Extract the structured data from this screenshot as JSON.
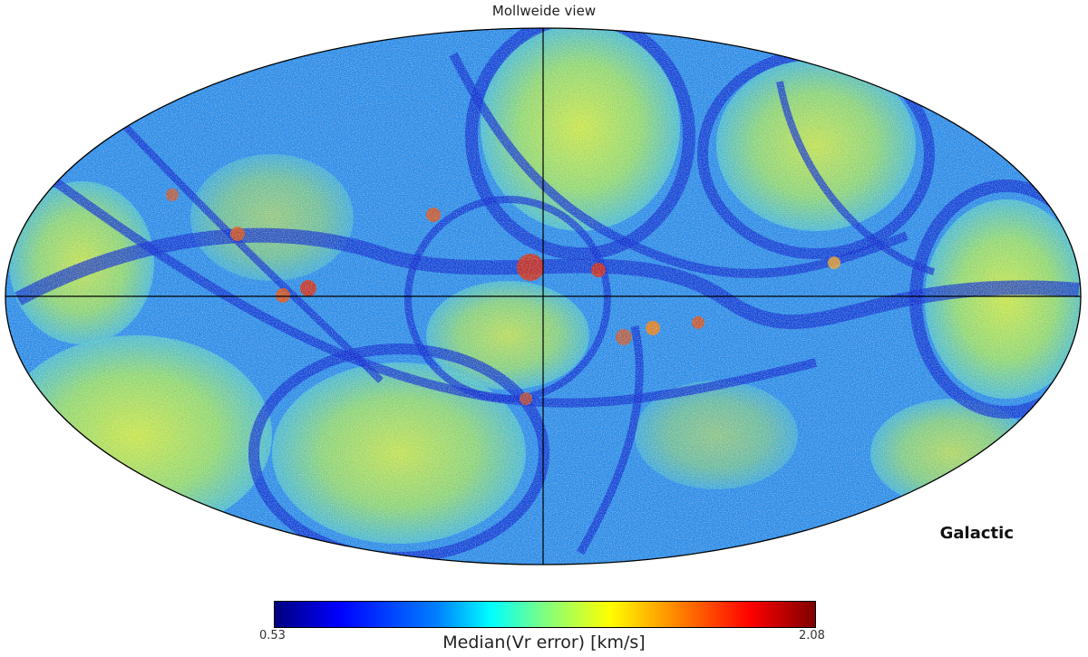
{
  "map": {
    "title": "Mollweide view",
    "projection": "mollweide",
    "frame_label": "Galactic",
    "graticule": "equator and central meridian",
    "colormap": "jet",
    "colors": {
      "low": "#00007f",
      "mid": "#7fff7f",
      "high": "#7f0000",
      "graticule": "#000000"
    }
  },
  "colorbar": {
    "min_label": "0.53",
    "max_label": "2.08",
    "min": 0.53,
    "max": 2.08,
    "label": "Median(Vr error) [km/s]"
  }
}
